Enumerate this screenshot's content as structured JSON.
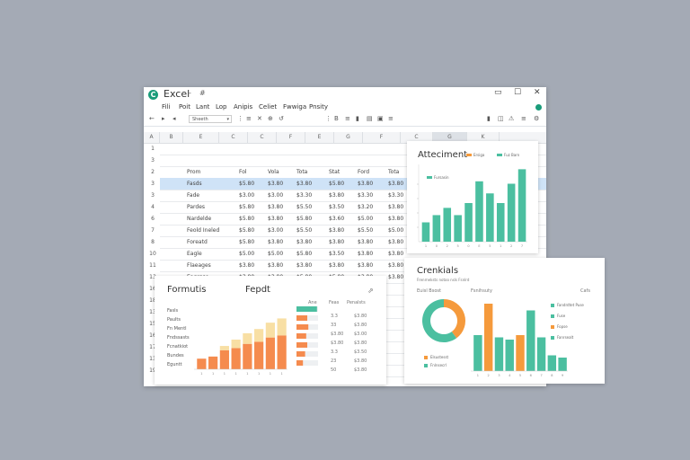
{
  "window": {
    "title": "Excel",
    "title_extra": "-",
    "title_extra2": "#",
    "logo_letter": "C",
    "controls": {
      "minimize": "▭",
      "maximize": "☐",
      "close": "✕"
    }
  },
  "menu": {
    "items": [
      "Fili",
      "Poit",
      "Lant",
      "Lop",
      "Anipis",
      "Celiet",
      "Fwwiga",
      "Pnsity"
    ]
  },
  "toolbar": {
    "glyphs_left": [
      "←",
      "▸",
      "◂"
    ],
    "font_select_value": "Sheeth",
    "glyphs_mid": [
      "⋮",
      "≡",
      "✕",
      "⊕",
      "↺"
    ],
    "glyphs_right": [
      "⋮",
      "B",
      "≡",
      "▮",
      "▤",
      "▣",
      "≡",
      "▮",
      "◫",
      "⚠",
      "≡",
      "⚙"
    ]
  },
  "columns": [
    "A",
    "B",
    "E",
    "C",
    "C",
    "F",
    "E",
    "G",
    "F",
    "C",
    "G",
    "K"
  ],
  "rows": [
    {
      "num": "1",
      "cells": []
    },
    {
      "num": "3",
      "cells": []
    },
    {
      "num": "2",
      "cells": [
        "Prom",
        "Fol",
        "Vola",
        "Tota",
        "Stat",
        "Ford",
        "Tota"
      ]
    },
    {
      "num": "3",
      "cells": [
        "Fasds",
        "$5.80",
        "$3.80",
        "$3.80",
        "$5.80",
        "$3.80",
        "$3.80"
      ],
      "highlight": true
    },
    {
      "num": "3",
      "cells": [
        "Fade",
        "$3.00",
        "$3.00",
        "$3.30",
        "$3.80",
        "$3.30",
        "$3.30"
      ]
    },
    {
      "num": "4",
      "cells": [
        "Pardes",
        "$5.80",
        "$3.80",
        "$5.50",
        "$3.50",
        "$3.20",
        "$3.80"
      ]
    },
    {
      "num": "6",
      "cells": [
        "Nardelde",
        "$5.80",
        "$3.80",
        "$5.80",
        "$3.60",
        "$5.00",
        "$3.80"
      ]
    },
    {
      "num": "7",
      "cells": [
        "Feold Ineled",
        "$5.80",
        "$3.00",
        "$5.50",
        "$3.80",
        "$5.50",
        "$5.00"
      ]
    },
    {
      "num": "8",
      "cells": [
        "Foreatd",
        "$5.80",
        "$3.80",
        "$3.80",
        "$3.80",
        "$3.80",
        "$3.80"
      ]
    },
    {
      "num": "10",
      "cells": [
        "Eagle",
        "$5.00",
        "$5.00",
        "$5.80",
        "$3.50",
        "$3.80",
        "$3.80"
      ]
    },
    {
      "num": "11",
      "cells": [
        "Flaeages",
        "$3.80",
        "$3.80",
        "$3.80",
        "$3.80",
        "$3.80",
        "$3.80"
      ]
    },
    {
      "num": "13",
      "cells": [
        "Eagrgse",
        "$3.80",
        "$3.80",
        "$5.80",
        "$5.80",
        "$3.80",
        "$3.80"
      ]
    },
    {
      "num": "16",
      "cells": []
    },
    {
      "num": "18",
      "cells": []
    },
    {
      "num": "13",
      "cells": []
    },
    {
      "num": "15",
      "cells": []
    },
    {
      "num": "16",
      "cells": []
    },
    {
      "num": "17",
      "cells": []
    },
    {
      "num": "13",
      "cells": []
    },
    {
      "num": "19",
      "cells": []
    }
  ],
  "panel_a": {
    "title": "Atteciment",
    "legend": [
      "Ersiga",
      "Fuz Barn"
    ],
    "mini_legend": "Fursasin",
    "colors": {
      "teal": "#4bbfa0",
      "orange": "#f59a3c"
    },
    "chart_data": {
      "type": "bar",
      "x_labels": [
        "1",
        "0",
        "2",
        "5",
        "0",
        "E",
        "5",
        "1",
        "2",
        "7"
      ],
      "series": [
        {
          "name": "Ersiga",
          "color": "#f59a3c",
          "values": []
        },
        {
          "name": "Fuz Barn",
          "color": "#4bbfa0",
          "values": [
            4,
            5.5,
            7,
            5.5,
            8,
            12.5,
            10,
            8,
            12,
            15
          ]
        }
      ],
      "ylim": [
        0,
        16
      ]
    }
  },
  "panel_b": {
    "title": "Formutis",
    "subtitle": "Fepdt",
    "corner": "⇗",
    "list_labels": [
      "Fasls",
      "Paults",
      "Fn Mentl",
      "Fndssasts",
      "Fcnatkiot",
      "Bundes",
      "Eguntt"
    ],
    "table_headers": [
      "Ane",
      "Feas",
      "Penalsts"
    ],
    "table_col1": [
      "3.3",
      "33",
      "$3.80",
      "$3.80",
      "3.3",
      "23",
      "50"
    ],
    "table_col2": [
      "$3.80",
      "$3.80",
      "$3.00",
      "$3.80",
      "$3.50",
      "$3.80",
      "$3.80"
    ],
    "hbar_fill": [
      0.95,
      0.5,
      0.55,
      0.45,
      0.5,
      0.4,
      0.3
    ],
    "colors": {
      "orange": "#f58b4e",
      "cream": "#f8dfa4",
      "teal": "#4bbfa0"
    },
    "chart_data": {
      "type": "bar",
      "categories": [
        "1",
        "1",
        "1",
        "1",
        "1",
        "1",
        "1",
        "1"
      ],
      "series": [
        {
          "name": "",
          "color": "#f58b4e",
          "values": [
            2.5,
            3,
            4.5,
            5,
            6,
            6.5,
            7.5,
            8
          ]
        },
        {
          "name": "",
          "color": "#f8dfa4",
          "values": [
            0,
            0,
            1,
            2,
            2.5,
            3,
            3.5,
            4
          ]
        }
      ],
      "ylim": [
        0,
        14
      ]
    }
  },
  "panel_c": {
    "title": "Crenkials",
    "subtitle": "Frenrneksts notoo nsls Fsnlrd",
    "header_left": "Euisl Bsost",
    "header_mid": "Fsnihsuty",
    "header_right": "Cafs",
    "legend": [
      {
        "text": "Fandrdtet Puse",
        "color": "#4bbfa0"
      },
      {
        "text": "Fuse",
        "color": "#4bbfa0"
      },
      {
        "text": "Fopse",
        "color": "#f59a3c"
      },
      {
        "text": "Fanrsealt",
        "color": "#4bbfa0"
      }
    ],
    "donut_legend": [
      {
        "text": "Elsustesst",
        "color": "#f59a3c"
      },
      {
        "text": "Fnlnsecrl",
        "color": "#4bbfa0"
      }
    ],
    "chart_data": [
      {
        "type": "pie",
        "labels": [
          "Elsustesst",
          "Fnlnsecrl"
        ],
        "values": [
          40,
          60
        ],
        "colors": [
          "#f59a3c",
          "#4bbfa0"
        ]
      },
      {
        "type": "bar",
        "categories": [
          "1",
          "2",
          "3",
          "4",
          "5",
          "6",
          "7",
          "8",
          "9"
        ],
        "values": [
          8,
          15,
          7.5,
          7,
          8,
          13.5,
          7.5,
          3.5,
          3
        ],
        "colors": [
          "#4bbfa0",
          "#f59a3c",
          "#4bbfa0",
          "#4bbfa0",
          "#f59a3c",
          "#4bbfa0",
          "#4bbfa0",
          "#4bbfa0",
          "#4bbfa0"
        ],
        "ylim": [
          0,
          16
        ]
      }
    ]
  }
}
